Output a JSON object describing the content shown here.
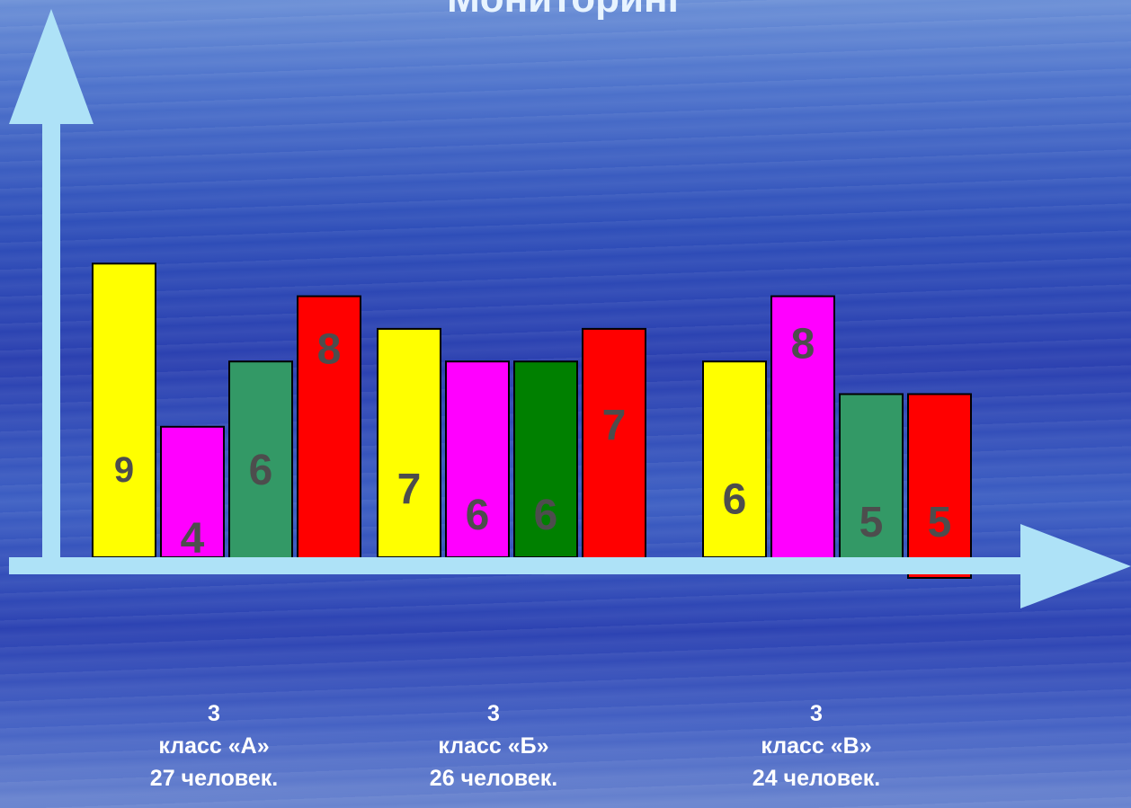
{
  "title": "Мониторинг",
  "chart_data": {
    "type": "bar",
    "categories": [
      [
        "3",
        "класс «А»",
        "27 человек."
      ],
      [
        "3",
        "класс «Б»",
        "26 человек."
      ],
      [
        "3",
        "класс «В»",
        "24 человек."
      ]
    ],
    "groups": [
      {
        "bars": [
          {
            "value": 9,
            "label": "9",
            "color": "#ffff00"
          },
          {
            "value": 4,
            "label": "4",
            "color": "#ff00ff"
          },
          {
            "value": 6,
            "label": "6",
            "color": "#339966"
          },
          {
            "value": 8,
            "label": "8",
            "color": "#ff0000"
          }
        ]
      },
      {
        "bars": [
          {
            "value": 7,
            "label": "7",
            "color": "#ffff00"
          },
          {
            "value": 6,
            "label": "6",
            "color": "#ff00ff"
          },
          {
            "value": 6,
            "label": "6",
            "color": "#008000"
          },
          {
            "value": 7,
            "label": "7",
            "color": "#ff0000"
          }
        ]
      },
      {
        "bars": [
          {
            "value": 6,
            "label": "6",
            "color": "#ffff00"
          },
          {
            "value": 8,
            "label": "8",
            "color": "#ff00ff"
          },
          {
            "value": 5,
            "label": "5",
            "color": "#339966"
          },
          {
            "value": 5,
            "label": "5",
            "color": "#ff0000"
          }
        ]
      }
    ],
    "label_color": "#4d4d4d",
    "axis_color": "#aee2f7"
  }
}
